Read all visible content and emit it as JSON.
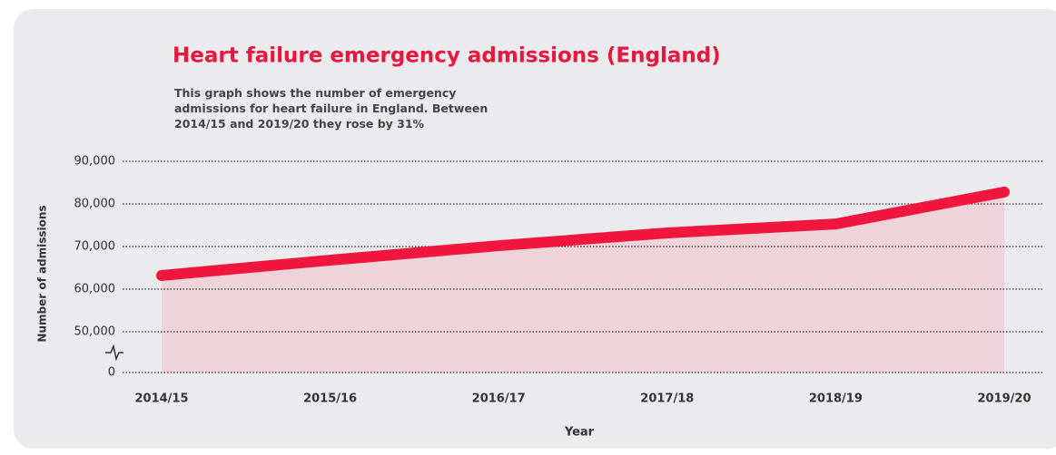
{
  "chart_data": {
    "type": "area",
    "title": "Heart failure emergency admissions (England)",
    "subtitle": "This graph shows the number of emergency admissions for heart failure in England. Between 2014/15 and 2019/20 they rose by 31%",
    "x_label": "Year",
    "y_label": "Number of admissions",
    "categories": [
      "2014/15",
      "2015/16",
      "2016/17",
      "2017/18",
      "2018/19",
      "2019/20"
    ],
    "values": [
      63200,
      66800,
      70200,
      73200,
      75300,
      82800
    ],
    "color": "#f0163e",
    "fill_color": "#eed3da",
    "ylim": [
      0,
      90000
    ],
    "y_axis_break": [
      0,
      50000
    ],
    "yticks": [
      0,
      {
        "value": 50000,
        "label": "50,000"
      },
      {
        "value": 60000,
        "label": "60,000"
      },
      {
        "value": 70000,
        "label": "70,000"
      },
      {
        "value": 80000,
        "label": "80,000"
      },
      {
        "value": 90000,
        "label": "90,000"
      }
    ],
    "grid": true
  }
}
